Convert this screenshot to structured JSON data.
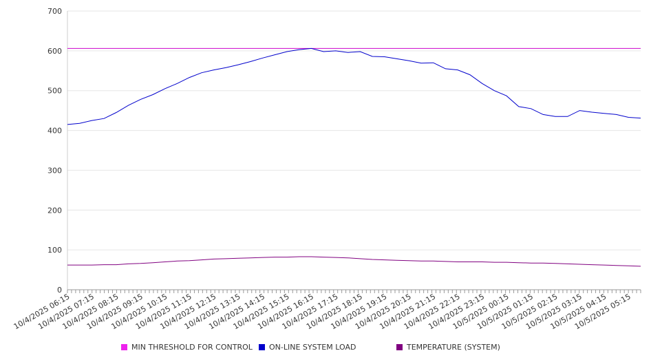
{
  "chart_data": {
    "type": "line",
    "title": "",
    "xlabel": "",
    "ylabel": "",
    "ylim": [
      0,
      700
    ],
    "yticks": [
      "0",
      "100",
      "200",
      "300",
      "400",
      "500",
      "600",
      "700"
    ],
    "grid": true,
    "legend_position": "bottom",
    "x_tick_labels": [
      "10/4/2025 06:15",
      "10/4/2025 07:15",
      "10/4/2025 08:15",
      "10/4/2025 09:15",
      "10/4/2025 10:15",
      "10/4/2025 11:15",
      "10/4/2025 12:15",
      "10/4/2025 13:15",
      "10/4/2025 14:15",
      "10/4/2025 15:15",
      "10/4/2025 16:15",
      "10/4/2025 17:15",
      "10/4/2025 18:15",
      "10/4/2025 19:15",
      "10/4/2025 20:15",
      "10/4/2025 21:15",
      "10/4/2025 22:15",
      "10/4/2025 23:15",
      "10/5/2025 00:15",
      "10/5/2025 01:15",
      "10/5/2025 02:15",
      "10/5/2025 03:15",
      "10/5/2025 04:15",
      "10/5/2025 05:15"
    ],
    "x": [
      "10/4/2025 06:15",
      "10/4/2025 06:45",
      "10/4/2025 07:15",
      "10/4/2025 07:45",
      "10/4/2025 08:15",
      "10/4/2025 08:45",
      "10/4/2025 09:15",
      "10/4/2025 09:45",
      "10/4/2025 10:15",
      "10/4/2025 10:45",
      "10/4/2025 11:15",
      "10/4/2025 11:45",
      "10/4/2025 12:15",
      "10/4/2025 12:45",
      "10/4/2025 13:15",
      "10/4/2025 13:45",
      "10/4/2025 14:15",
      "10/4/2025 14:45",
      "10/4/2025 15:15",
      "10/4/2025 15:45",
      "10/4/2025 16:15",
      "10/4/2025 16:45",
      "10/4/2025 17:15",
      "10/4/2025 17:45",
      "10/4/2025 18:15",
      "10/4/2025 18:45",
      "10/4/2025 19:15",
      "10/4/2025 19:45",
      "10/4/2025 20:15",
      "10/4/2025 20:45",
      "10/4/2025 21:15",
      "10/4/2025 21:45",
      "10/4/2025 22:15",
      "10/4/2025 22:45",
      "10/4/2025 23:15",
      "10/4/2025 23:45",
      "10/5/2025 00:15",
      "10/5/2025 00:45",
      "10/5/2025 01:15",
      "10/5/2025 01:45",
      "10/5/2025 02:15",
      "10/5/2025 02:45",
      "10/5/2025 03:15",
      "10/5/2025 03:45",
      "10/5/2025 04:15",
      "10/5/2025 04:45",
      "10/5/2025 05:15",
      "10/5/2025 05:45"
    ],
    "series": [
      {
        "name": "MIN THRESHOLD FOR CONTROL",
        "color": "#cc00cc",
        "values": [
          606,
          606,
          606,
          606,
          606,
          606,
          606,
          606,
          606,
          606,
          606,
          606,
          606,
          606,
          606,
          606,
          606,
          606,
          606,
          606,
          606,
          606,
          606,
          606,
          606,
          606,
          606,
          606,
          606,
          606,
          606,
          606,
          606,
          606,
          606,
          606,
          606,
          606,
          606,
          606,
          606,
          606,
          606,
          606,
          606,
          606,
          606,
          606
        ]
      },
      {
        "name": "ON-LINE SYSTEM LOAD",
        "color": "#0000cc",
        "values": [
          415,
          418,
          425,
          430,
          445,
          463,
          478,
          490,
          505,
          518,
          533,
          545,
          552,
          558,
          565,
          573,
          582,
          590,
          598,
          603,
          606,
          598,
          600,
          596,
          598,
          586,
          585,
          580,
          575,
          569,
          570,
          555,
          552,
          540,
          518,
          500,
          487,
          460,
          455,
          440,
          435,
          435,
          450,
          446,
          443,
          440,
          433,
          431
        ]
      },
      {
        "name": "TEMPERATURE (SYSTEM)",
        "color": "#800080",
        "values": [
          62,
          62,
          62,
          63,
          63,
          65,
          66,
          68,
          70,
          72,
          73,
          75,
          77,
          78,
          79,
          80,
          81,
          82,
          82,
          83,
          83,
          82,
          81,
          80,
          78,
          76,
          75,
          74,
          73,
          72,
          72,
          71,
          70,
          70,
          70,
          69,
          69,
          68,
          67,
          67,
          66,
          65,
          64,
          63,
          62,
          61,
          60,
          59
        ]
      }
    ]
  }
}
